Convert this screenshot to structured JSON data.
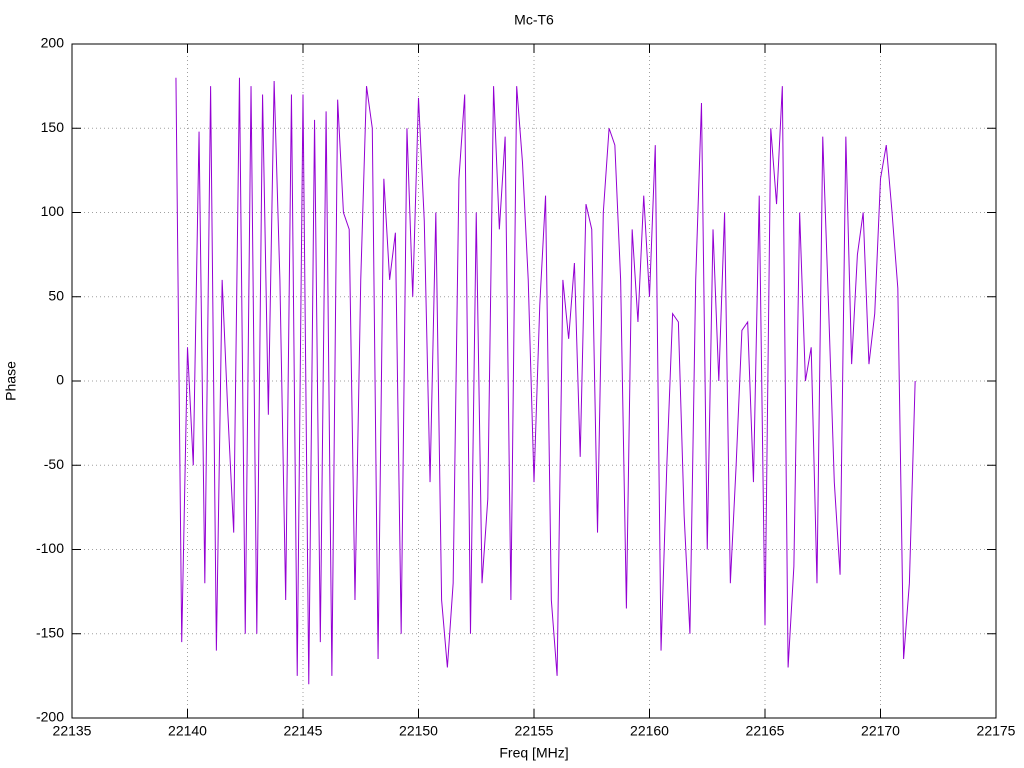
{
  "chart_data": {
    "type": "line",
    "title": "Mc-T6",
    "x_label": "Freq [MHz]",
    "y_label": "Phase",
    "x": [
      22139.5,
      22139.75,
      22140,
      22140.25,
      22140.5,
      22140.75,
      22141,
      22141.25,
      22141.5,
      22141.75,
      22142,
      22142.25,
      22142.5,
      22142.75,
      22143,
      22143.25,
      22143.5,
      22143.75,
      22144,
      22144.25,
      22144.5,
      22144.75,
      22145,
      22145.25,
      22145.5,
      22145.75,
      22146,
      22146.25,
      22146.5,
      22146.75,
      22147,
      22147.25,
      22147.5,
      22147.75,
      22148,
      22148.25,
      22148.5,
      22148.75,
      22149,
      22149.25,
      22149.5,
      22149.75,
      22150,
      22150.25,
      22150.5,
      22150.75,
      22151,
      22151.25,
      22151.5,
      22151.75,
      22152,
      22152.25,
      22152.5,
      22152.75,
      22153,
      22153.25,
      22153.5,
      22153.75,
      22154,
      22154.25,
      22154.5,
      22154.75,
      22155,
      22155.25,
      22155.5,
      22155.75,
      22156,
      22156.25,
      22156.5,
      22156.75,
      22157,
      22157.25,
      22157.5,
      22157.75,
      22158,
      22158.25,
      22158.5,
      22158.75,
      22159,
      22159.25,
      22159.5,
      22159.75,
      22160,
      22160.25,
      22160.5,
      22160.75,
      22161,
      22161.25,
      22161.5,
      22161.75,
      22162,
      22162.25,
      22162.5,
      22162.75,
      22163,
      22163.25,
      22163.5,
      22163.75,
      22164,
      22164.25,
      22164.5,
      22164.75,
      22165,
      22165.25,
      22165.5,
      22165.75,
      22166,
      22166.25,
      22166.5,
      22166.75,
      22167,
      22167.25,
      22167.5,
      22167.75,
      22168,
      22168.25,
      22168.5,
      22168.75,
      22169,
      22169.25,
      22169.5,
      22169.75,
      22170,
      22170.25,
      22170.5,
      22170.75,
      22171,
      22171.25,
      22171.5
    ],
    "series": [
      {
        "color": "#9400d3",
        "values": [
          180,
          -155,
          20,
          -50,
          148,
          -120,
          175,
          -160,
          60,
          -20,
          -90,
          180,
          -150,
          175,
          -150,
          170,
          -20,
          178,
          60,
          -130,
          170,
          -175,
          170,
          -180,
          155,
          -155,
          160,
          -175,
          167,
          100,
          90,
          -130,
          60,
          175,
          150,
          -165,
          120,
          60,
          88,
          -150,
          150,
          50,
          168,
          95,
          -60,
          100,
          -130,
          -170,
          -120,
          120,
          170,
          -150,
          100,
          -120,
          -70,
          175,
          90,
          145,
          -130,
          175,
          130,
          60,
          -60,
          45,
          110,
          -130,
          -175,
          60,
          25,
          70,
          -45,
          105,
          90,
          -90,
          100,
          150,
          140,
          60,
          -135,
          90,
          35,
          110,
          50,
          140,
          -160,
          -50,
          40,
          35,
          -80,
          -150,
          60,
          165,
          -100,
          90,
          0,
          100,
          -120,
          -50,
          30,
          35,
          -60,
          110,
          -145,
          150,
          105,
          175,
          -170,
          -110,
          100,
          0,
          20,
          -120,
          145,
          45,
          -60,
          -115,
          145,
          10,
          75,
          100,
          10,
          40,
          120,
          140,
          100,
          55,
          -165,
          -120,
          0
        ]
      }
    ],
    "xlim": [
      22135,
      22175
    ],
    "xticks": [
      22135,
      22140,
      22145,
      22150,
      22155,
      22160,
      22165,
      22170,
      22175
    ],
    "ylim": [
      -200,
      200
    ],
    "yticks": [
      -200,
      -150,
      -100,
      -50,
      0,
      50,
      100,
      150,
      200
    ],
    "grid": true
  }
}
